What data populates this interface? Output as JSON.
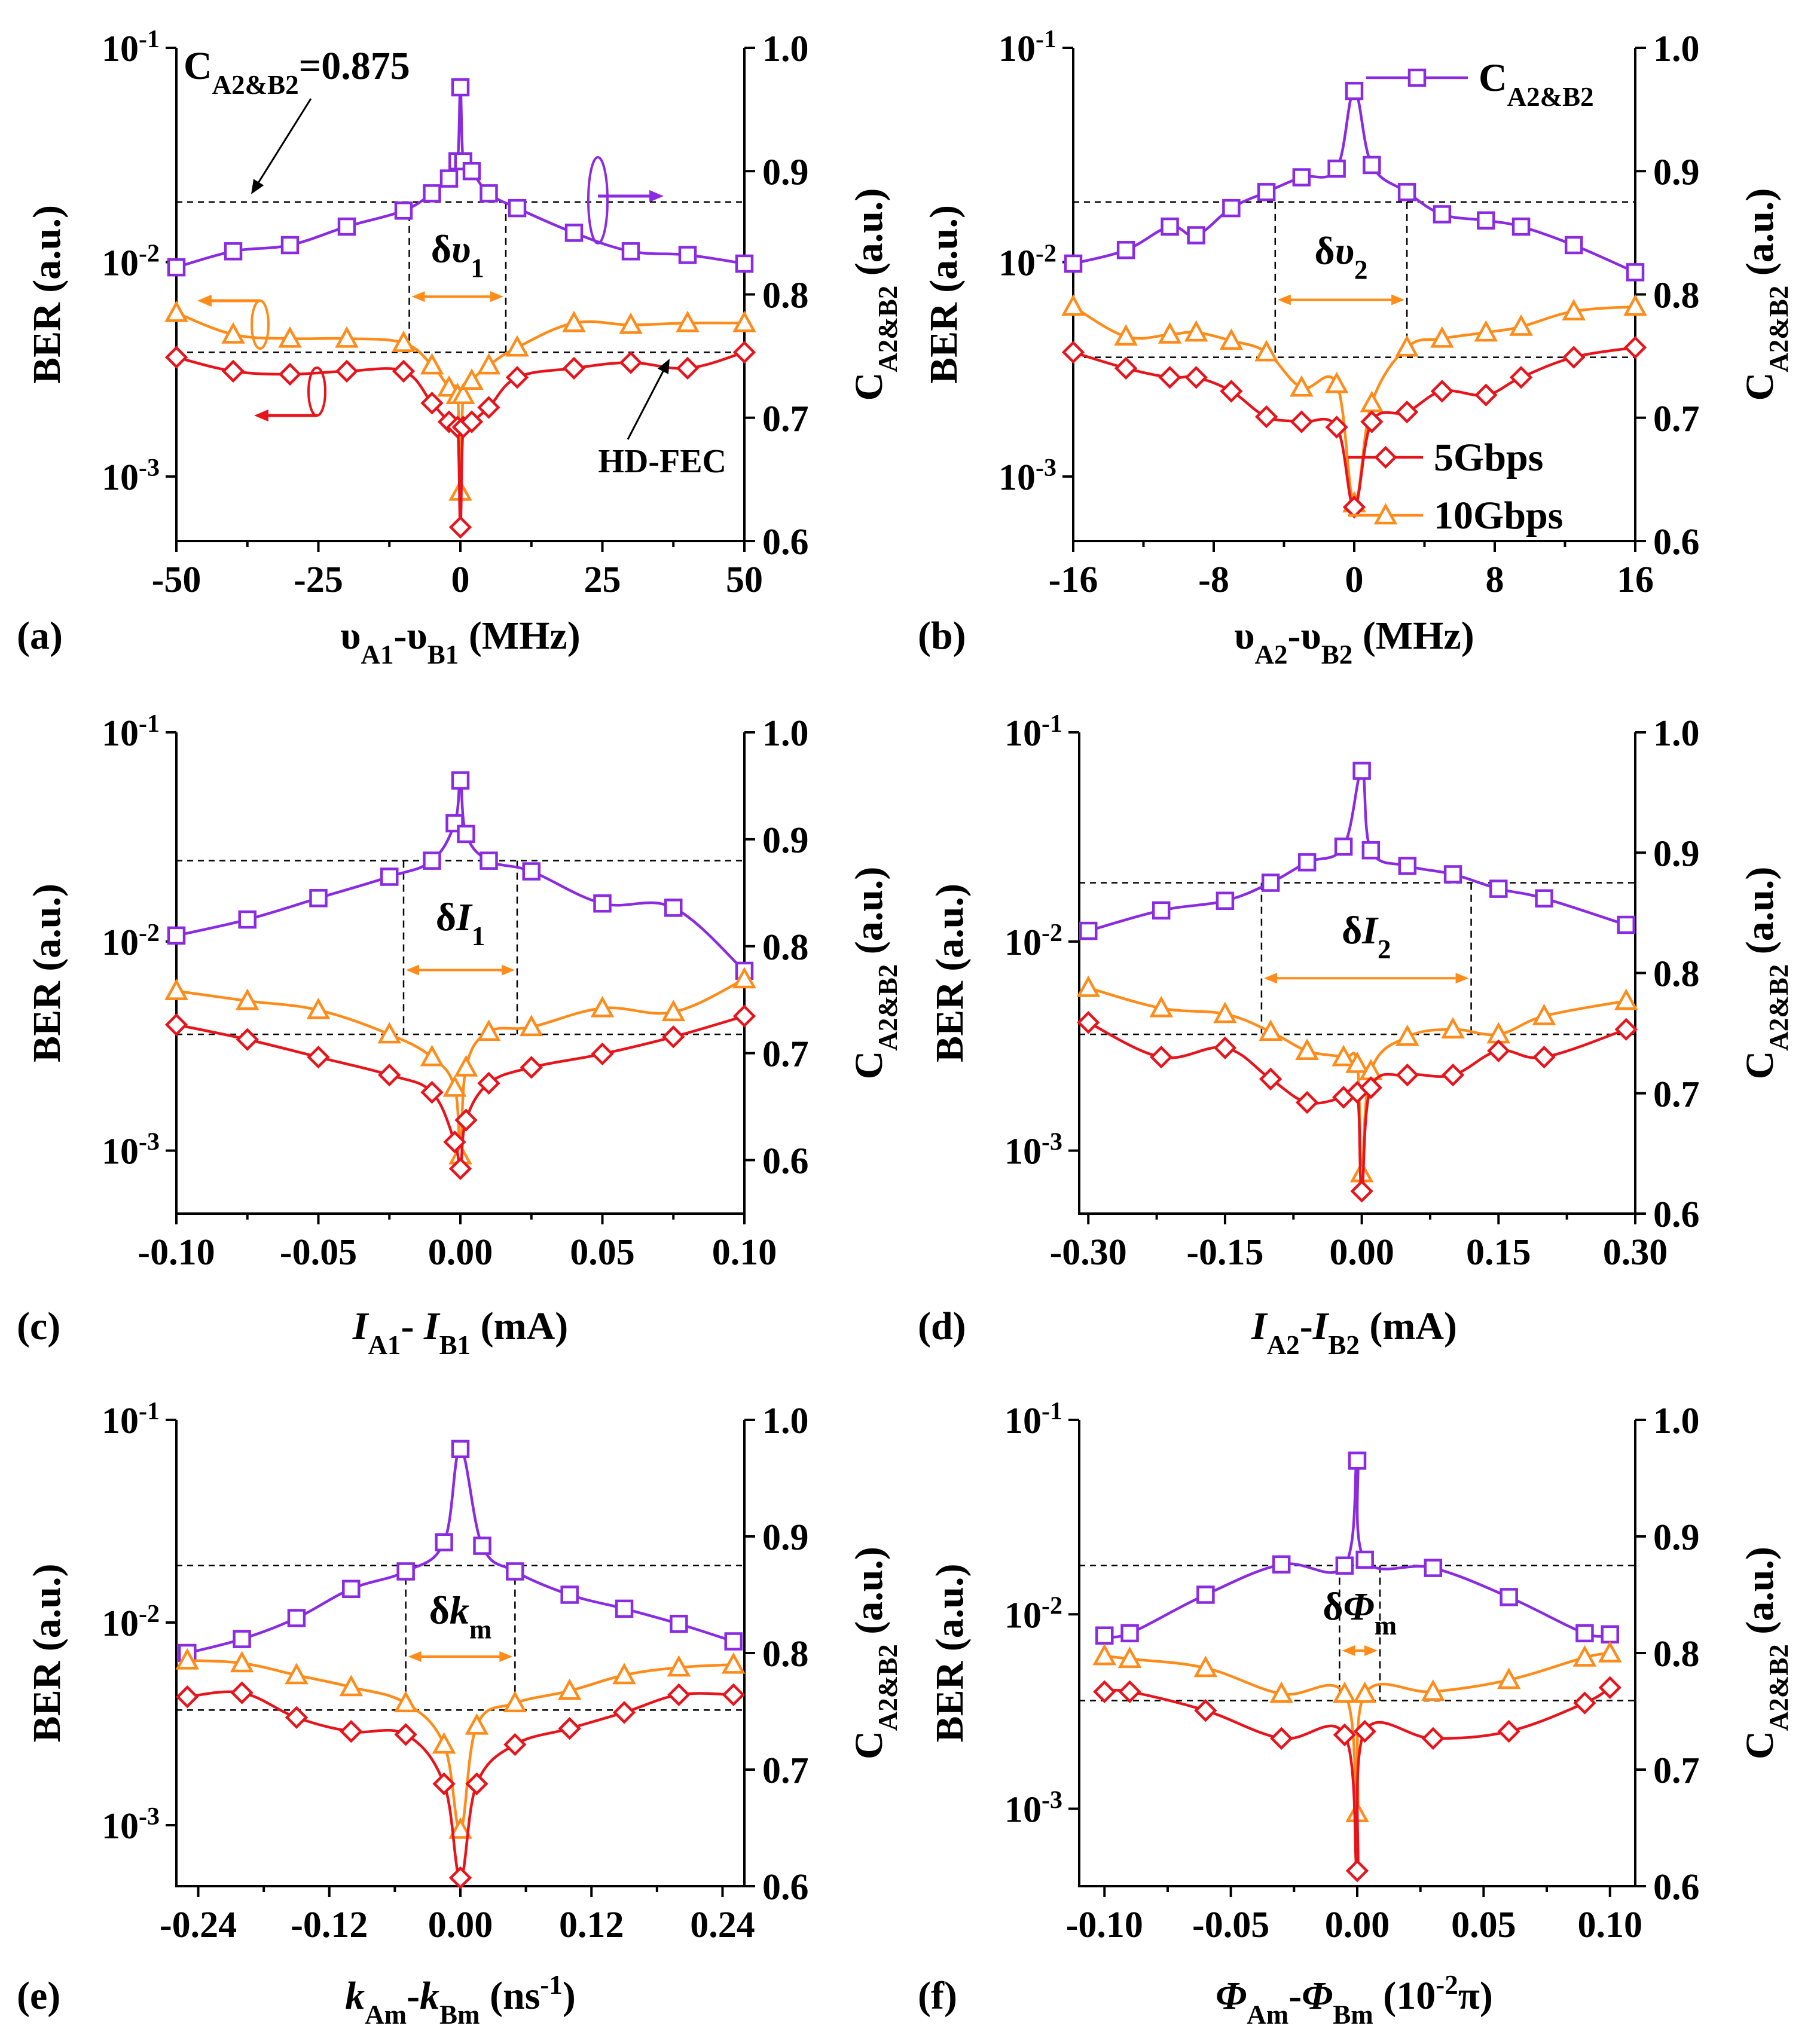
{
  "colors": {
    "c": "#8a2be2",
    "ber10": "#ff8c1a",
    "ber5": "#e8141c"
  },
  "chart_data": [
    {
      "type": "line",
      "panel_label": "(a)",
      "xlabel": "υA1-υB1 (MHz)",
      "ylabel_left": "BER (a.u.)",
      "ylabel_right": "CA2&B2 (a.u.)",
      "xlim": [
        -50,
        50
      ],
      "xticks": [
        -50,
        -25,
        0,
        25,
        50
      ],
      "xticklabels": [
        "-50",
        "-25",
        "0",
        "25",
        "50"
      ],
      "ylim_left": [
        0.0005,
        0.1
      ],
      "ylim_right": [
        0.6,
        1.0
      ],
      "yticks_right": [
        "0.6",
        "0.7",
        "0.8",
        "0.9",
        "1.0"
      ],
      "yticks_left": [
        "10-3",
        "10-2",
        "10-1"
      ],
      "hdfec": 0.0038,
      "c_ref": 0.875,
      "bracket": {
        "label": "δυ1",
        "x0": -9,
        "x1": 8
      },
      "annotations": {
        "c_text": "CA2&B2=0.875",
        "fec_text": "HD-FEC"
      },
      "series": [
        {
          "name": "CA2&B2",
          "axis": "right",
          "x": [
            -50,
            -40,
            -30,
            -20,
            -10,
            -5,
            -2,
            -0.5,
            0,
            0.5,
            2,
            5,
            10,
            20,
            30,
            40,
            50
          ],
          "values": [
            0.822,
            0.835,
            0.84,
            0.855,
            0.868,
            0.882,
            0.894,
            0.908,
            0.968,
            0.908,
            0.9,
            0.882,
            0.87,
            0.85,
            0.835,
            0.832,
            0.825
          ]
        },
        {
          "name": "10Gbps",
          "axis": "left",
          "x": [
            -50,
            -40,
            -30,
            -20,
            -10,
            -5,
            -2,
            -0.5,
            0,
            0.5,
            2,
            5,
            10,
            20,
            30,
            40,
            50
          ],
          "values": [
            0.0058,
            0.0046,
            0.0044,
            0.0044,
            0.0042,
            0.0033,
            0.0026,
            0.0024,
            0.00085,
            0.0024,
            0.0028,
            0.0033,
            0.004,
            0.0052,
            0.0051,
            0.0052,
            0.0052
          ]
        },
        {
          "name": "5Gbps",
          "axis": "left",
          "x": [
            -50,
            -40,
            -30,
            -20,
            -10,
            -5,
            -2,
            -0.5,
            0,
            0.5,
            2,
            5,
            10,
            20,
            30,
            40,
            50
          ],
          "values": [
            0.0036,
            0.0031,
            0.003,
            0.0031,
            0.0031,
            0.0022,
            0.0018,
            0.0017,
            0.00058,
            0.0017,
            0.0018,
            0.0021,
            0.0029,
            0.0032,
            0.0034,
            0.0032,
            0.0038
          ]
        }
      ]
    },
    {
      "type": "line",
      "panel_label": "(b)",
      "xlabel": "υA2-υB2 (MHz)",
      "ylabel_left": "BER (a.u.)",
      "ylabel_right": "CA2&B2 (a.u.)",
      "xlim": [
        -16,
        16
      ],
      "xticks": [
        -16,
        -8,
        0,
        8,
        16
      ],
      "xticklabels": [
        "-16",
        "-8",
        "0",
        "8",
        "16"
      ],
      "ylim_left": [
        0.0005,
        0.1
      ],
      "ylim_right": [
        0.6,
        1.0
      ],
      "yticks_right": [
        "0.6",
        "0.7",
        "0.8",
        "0.9",
        "1.0"
      ],
      "yticks_left": [
        "10-3",
        "10-2",
        "10-1"
      ],
      "hdfec": 0.0036,
      "c_ref": 0.875,
      "bracket": {
        "label": "δυ2",
        "x0": -4.5,
        "x1": 3
      },
      "legend": [
        {
          "name": "CA2&B2",
          "series": 0
        },
        {
          "name": "5Gbps",
          "series": 2
        },
        {
          "name": "10Gbps",
          "series": 1
        }
      ],
      "series": [
        {
          "name": "CA2&B2",
          "axis": "right",
          "x": [
            -16,
            -13,
            -10.5,
            -9,
            -7,
            -5,
            -3,
            -1,
            0,
            1,
            3,
            5,
            7.5,
            9.5,
            12.5,
            16
          ],
          "values": [
            0.825,
            0.836,
            0.855,
            0.848,
            0.87,
            0.883,
            0.895,
            0.902,
            0.965,
            0.905,
            0.883,
            0.865,
            0.86,
            0.855,
            0.84,
            0.818
          ]
        },
        {
          "name": "10Gbps",
          "axis": "left",
          "x": [
            -16,
            -13,
            -10.5,
            -9,
            -7,
            -5,
            -3,
            -1,
            0,
            1,
            3,
            5,
            7.5,
            9.5,
            12.5,
            16
          ],
          "values": [
            0.0062,
            0.0045,
            0.0046,
            0.0047,
            0.0043,
            0.0038,
            0.0026,
            0.0027,
            0.00075,
            0.0022,
            0.004,
            0.0044,
            0.0047,
            0.005,
            0.0059,
            0.0062
          ]
        },
        {
          "name": "5Gbps",
          "axis": "left",
          "x": [
            -16,
            -13,
            -10.5,
            -9,
            -7,
            -5,
            -3,
            -1,
            0,
            1,
            3,
            5,
            7.5,
            9.5,
            12.5,
            16
          ],
          "values": [
            0.0038,
            0.0032,
            0.0029,
            0.0029,
            0.0025,
            0.0019,
            0.0018,
            0.0017,
            0.00072,
            0.0018,
            0.002,
            0.0025,
            0.0024,
            0.0029,
            0.0036,
            0.004
          ]
        }
      ]
    },
    {
      "type": "line",
      "panel_label": "(c)",
      "xlabel": "IA1- IB1 (mA)",
      "ylabel_left": "BER (a.u.)",
      "ylabel_right": "CA2&B2 (a.u.)",
      "xlim": [
        -0.1,
        0.1
      ],
      "xticks": [
        -0.1,
        -0.05,
        0,
        0.05,
        0.1
      ],
      "xticklabels": [
        "-0.10",
        "-0.05",
        "0.00",
        "0.05",
        "0.10"
      ],
      "ylim_left": [
        0.0005,
        0.1
      ],
      "ylim_right": [
        0.55,
        1.0
      ],
      "yticks_right": [
        "0.6",
        "0.7",
        "0.8",
        "0.9",
        "1.0"
      ],
      "yticks_left": [
        "10-3",
        "10-2",
        "10-1"
      ],
      "hdfec": 0.0036,
      "c_ref": 0.88,
      "bracket": {
        "label": "δI1",
        "x0": -0.02,
        "x1": 0.02
      },
      "series": [
        {
          "name": "CA2&B2",
          "axis": "right",
          "x": [
            -0.1,
            -0.075,
            -0.05,
            -0.025,
            -0.01,
            -0.002,
            0,
            0.002,
            0.01,
            0.025,
            0.05,
            0.075,
            0.1
          ],
          "values": [
            0.81,
            0.825,
            0.845,
            0.865,
            0.88,
            0.915,
            0.955,
            0.905,
            0.88,
            0.87,
            0.84,
            0.836,
            0.777
          ]
        },
        {
          "name": "10Gbps",
          "axis": "left",
          "x": [
            -0.1,
            -0.075,
            -0.05,
            -0.025,
            -0.01,
            -0.002,
            0,
            0.002,
            0.01,
            0.025,
            0.05,
            0.075,
            0.1
          ],
          "values": [
            0.0058,
            0.0052,
            0.0047,
            0.0036,
            0.0028,
            0.002,
            0.00095,
            0.0025,
            0.0037,
            0.0039,
            0.0048,
            0.0046,
            0.0066
          ]
        },
        {
          "name": "5Gbps",
          "axis": "left",
          "x": [
            -0.1,
            -0.075,
            -0.05,
            -0.025,
            -0.01,
            -0.002,
            0,
            0.002,
            0.01,
            0.025,
            0.05,
            0.075,
            0.1
          ],
          "values": [
            0.004,
            0.0034,
            0.0028,
            0.0023,
            0.0019,
            0.0011,
            0.00082,
            0.0014,
            0.0021,
            0.0025,
            0.0029,
            0.0035,
            0.0044
          ]
        }
      ]
    },
    {
      "type": "line",
      "panel_label": "(d)",
      "xlabel": "IA2-IB2 (mA)",
      "ylabel_left": "BER (a.u.)",
      "ylabel_right": "CA2&B2 (a.u.)",
      "xlim": [
        -0.31,
        0.3
      ],
      "xticks": [
        -0.3,
        -0.15,
        0,
        0.15,
        0.3
      ],
      "xticklabels": [
        "-0.30",
        "-0.15",
        "0.00",
        "0.15",
        "0.30"
      ],
      "ylim_left": [
        0.0005,
        0.1
      ],
      "ylim_right": [
        0.6,
        1.0
      ],
      "yticks_right": [
        "0.6",
        "0.7",
        "0.8",
        "0.9",
        "1.0"
      ],
      "yticks_left": [
        "10-3",
        "10-2",
        "10-1"
      ],
      "hdfec": 0.0036,
      "c_ref": 0.875,
      "bracket": {
        "label": "δI2",
        "x0": -0.11,
        "x1": 0.12
      },
      "series": [
        {
          "name": "CA2&B2",
          "axis": "right",
          "x": [
            -0.3,
            -0.22,
            -0.15,
            -0.1,
            -0.06,
            -0.02,
            0,
            0.01,
            0.05,
            0.1,
            0.15,
            0.2,
            0.29
          ],
          "values": [
            0.835,
            0.852,
            0.86,
            0.875,
            0.892,
            0.905,
            0.968,
            0.902,
            0.889,
            0.882,
            0.87,
            0.862,
            0.84
          ]
        },
        {
          "name": "10Gbps",
          "axis": "left",
          "x": [
            -0.3,
            -0.22,
            -0.15,
            -0.1,
            -0.06,
            -0.02,
            -0.005,
            0,
            0.01,
            0.05,
            0.1,
            0.15,
            0.2,
            0.29
          ],
          "values": [
            0.006,
            0.0048,
            0.0045,
            0.0037,
            0.003,
            0.0028,
            0.0026,
            0.00078,
            0.0024,
            0.0035,
            0.0038,
            0.0036,
            0.0044,
            0.0052
          ]
        },
        {
          "name": "5Gbps",
          "axis": "left",
          "x": [
            -0.3,
            -0.22,
            -0.15,
            -0.1,
            -0.06,
            -0.02,
            -0.005,
            0,
            0.01,
            0.05,
            0.1,
            0.15,
            0.2,
            0.29
          ],
          "values": [
            0.0041,
            0.0028,
            0.0031,
            0.0022,
            0.0017,
            0.0018,
            0.0019,
            0.00064,
            0.002,
            0.0023,
            0.0023,
            0.003,
            0.0028,
            0.0038
          ]
        }
      ]
    },
    {
      "type": "line",
      "panel_label": "(e)",
      "xlabel": "kAm-kBm (ns-1)",
      "ylabel_left": "BER (a.u.)",
      "ylabel_right": "CA2&B2 (a.u.)",
      "xlim": [
        -0.26,
        0.26
      ],
      "xticks": [
        -0.24,
        -0.12,
        0,
        0.12,
        0.24
      ],
      "xticklabels": [
        "-0.24",
        "-0.12",
        "0.00",
        "0.12",
        "0.24"
      ],
      "ylim_left": [
        0.0005,
        0.1
      ],
      "ylim_right": [
        0.6,
        1.0
      ],
      "yticks_right": [
        "0.6",
        "0.7",
        "0.8",
        "0.9",
        "1.0"
      ],
      "yticks_left": [
        "10-3",
        "10-2",
        "10-1"
      ],
      "hdfec": 0.0037,
      "c_ref": 0.875,
      "bracket": {
        "label": "δkm",
        "x0": -0.05,
        "x1": 0.05
      },
      "series": [
        {
          "name": "CA2&B2",
          "axis": "right",
          "x": [
            -0.25,
            -0.2,
            -0.15,
            -0.1,
            -0.05,
            -0.015,
            0,
            0.02,
            0.05,
            0.1,
            0.15,
            0.2,
            0.25
          ],
          "values": [
            0.8,
            0.812,
            0.83,
            0.855,
            0.87,
            0.895,
            0.975,
            0.892,
            0.87,
            0.85,
            0.838,
            0.825,
            0.81
          ]
        },
        {
          "name": "10Gbps",
          "axis": "left",
          "x": [
            -0.25,
            -0.2,
            -0.15,
            -0.1,
            -0.05,
            -0.015,
            0,
            0.015,
            0.05,
            0.1,
            0.15,
            0.2,
            0.25
          ],
          "values": [
            0.0065,
            0.0063,
            0.0055,
            0.0048,
            0.004,
            0.0025,
            0.00095,
            0.0031,
            0.004,
            0.0046,
            0.0055,
            0.006,
            0.0062
          ]
        },
        {
          "name": "5Gbps",
          "axis": "left",
          "x": [
            -0.25,
            -0.2,
            -0.15,
            -0.1,
            -0.05,
            -0.015,
            0,
            0.015,
            0.05,
            0.1,
            0.15,
            0.2,
            0.25
          ],
          "values": [
            0.0043,
            0.0045,
            0.0034,
            0.0029,
            0.0028,
            0.0016,
            0.00055,
            0.0016,
            0.0025,
            0.003,
            0.0036,
            0.0044,
            0.0044
          ]
        }
      ]
    },
    {
      "type": "line",
      "panel_label": "(f)",
      "xlabel": "ΦAm-ΦBm (10-2π)",
      "ylabel_left": "BER (a.u.)",
      "ylabel_right": "CA2&B2 (a.u.)",
      "xlim": [
        -0.11,
        0.11
      ],
      "xticks": [
        -0.1,
        -0.05,
        0,
        0.05,
        0.1
      ],
      "xticklabels": [
        "-0.10",
        "-0.05",
        "0.00",
        "0.05",
        "0.10"
      ],
      "ylim_left": [
        0.0004,
        0.1
      ],
      "ylim_right": [
        0.6,
        1.0
      ],
      "yticks_right": [
        "0.6",
        "0.7",
        "0.8",
        "0.9",
        "1.0"
      ],
      "yticks_left": [
        "10-3",
        "10-2",
        "10-1"
      ],
      "hdfec": 0.0036,
      "c_ref": 0.875,
      "bracket": {
        "label": "δΦm",
        "x0": -0.007,
        "x1": 0.009
      },
      "series": [
        {
          "name": "CA2&B2",
          "axis": "right",
          "x": [
            -0.1,
            -0.09,
            -0.06,
            -0.03,
            -0.005,
            0,
            0.003,
            0.03,
            0.06,
            0.09,
            0.1
          ],
          "values": [
            0.815,
            0.817,
            0.85,
            0.876,
            0.875,
            0.965,
            0.88,
            0.873,
            0.848,
            0.817,
            0.816
          ]
        },
        {
          "name": "10Gbps",
          "axis": "left",
          "x": [
            -0.1,
            -0.09,
            -0.06,
            -0.03,
            -0.005,
            0,
            0.003,
            0.03,
            0.06,
            0.09,
            0.1
          ],
          "values": [
            0.0061,
            0.0059,
            0.0053,
            0.0039,
            0.0039,
            0.00095,
            0.0039,
            0.004,
            0.0046,
            0.006,
            0.0063
          ]
        },
        {
          "name": "5Gbps",
          "axis": "left",
          "x": [
            -0.1,
            -0.09,
            -0.06,
            -0.03,
            -0.005,
            0,
            0.003,
            0.03,
            0.06,
            0.09,
            0.1
          ],
          "values": [
            0.004,
            0.004,
            0.0032,
            0.0023,
            0.0024,
            0.00048,
            0.0025,
            0.0023,
            0.0025,
            0.0035,
            0.0042
          ]
        }
      ]
    }
  ]
}
